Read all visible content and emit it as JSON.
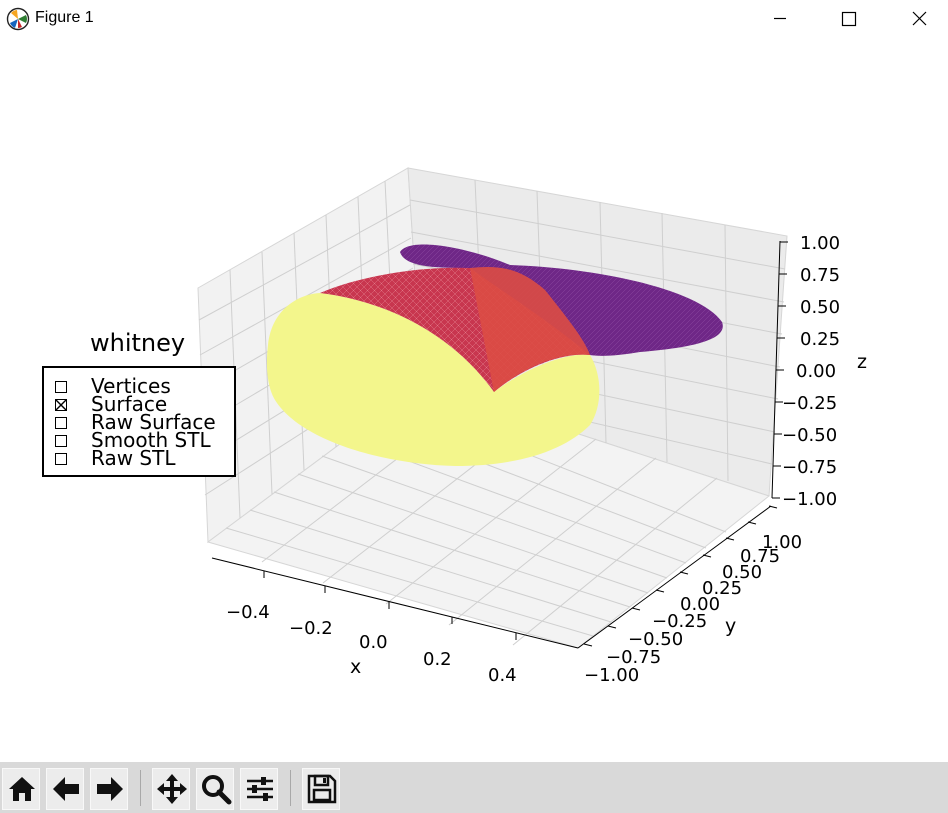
{
  "window": {
    "title": "Figure 1",
    "app_icon": "matplotlib-icon",
    "controls": [
      "minimize-icon",
      "maximize-icon",
      "close-icon"
    ]
  },
  "plot": {
    "xlabel": "x",
    "ylabel": "y",
    "zlabel": "z",
    "x_ticks": [
      "−0.4",
      "−0.2",
      "0.0",
      "0.2",
      "0.4"
    ],
    "y_ticks": [
      "−1.00",
      "−0.75",
      "−0.50",
      "−0.25",
      "0.00",
      "0.25",
      "0.50",
      "0.75",
      "1.00"
    ],
    "z_ticks": [
      "1.00",
      "0.75",
      "0.50",
      "0.25",
      "0.00",
      "−0.25",
      "−0.50",
      "−0.75",
      "−1.00"
    ],
    "x_range": [
      -0.5,
      0.5
    ],
    "y_range": [
      -1.0,
      1.0
    ],
    "z_range": [
      -1.0,
      1.0
    ],
    "surface_colors": {
      "light": "#f2f58a",
      "mid": "#d9434c",
      "dark": "#6f2787"
    }
  },
  "checkbuttons": {
    "title": "whitney",
    "items": [
      {
        "label": "Vertices",
        "checked": false
      },
      {
        "label": "Surface",
        "checked": true
      },
      {
        "label": "Raw Surface",
        "checked": false
      },
      {
        "label": "Smooth STL",
        "checked": false
      },
      {
        "label": "Raw STL",
        "checked": false
      }
    ]
  },
  "toolbar": {
    "buttons": [
      "home-icon",
      "back-icon",
      "forward-icon",
      "pan-icon",
      "zoom-icon",
      "configure-subplots-icon",
      "save-icon"
    ]
  }
}
